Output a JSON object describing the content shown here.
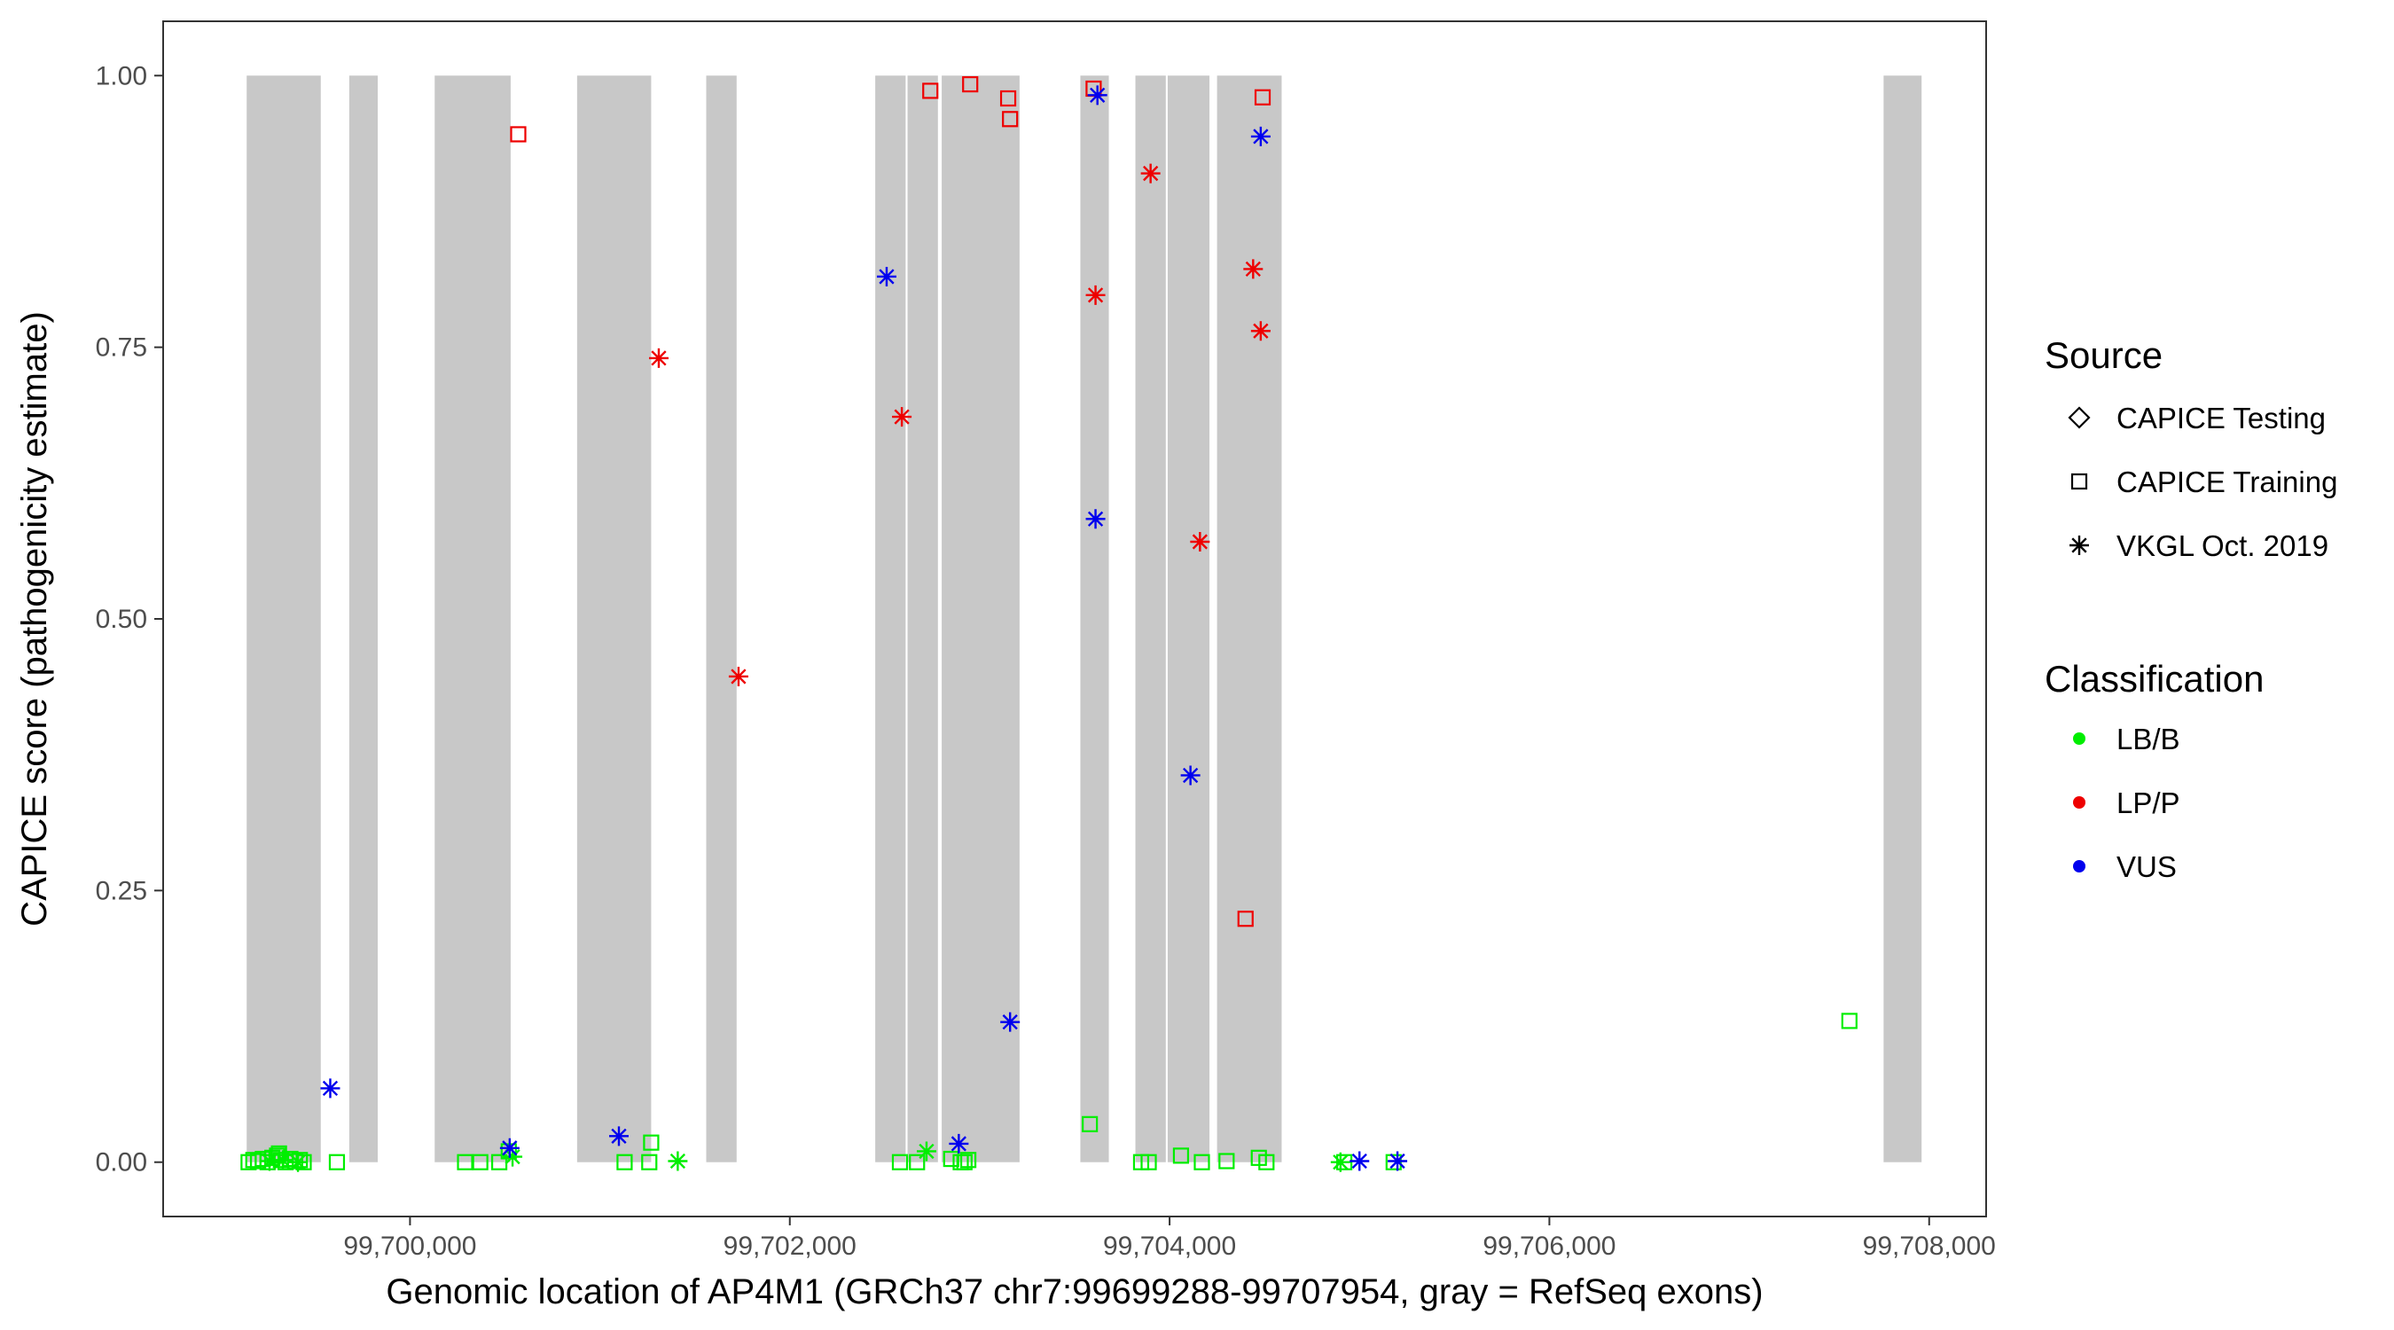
{
  "chart_data": {
    "type": "scatter",
    "xlabel": "Genomic location of AP4M1 (GRCh37 chr7:99699288-99707954, gray = RefSeq exons)",
    "ylabel": "CAPICE score (pathogenicity estimate)",
    "xlim": [
      99698700,
      99708300
    ],
    "ylim": [
      -0.05,
      1.05
    ],
    "x_ticks": [
      {
        "value": 99700000,
        "label": "99,700,000"
      },
      {
        "value": 99702000,
        "label": "99,702,000"
      },
      {
        "value": 99704000,
        "label": "99,704,000"
      },
      {
        "value": 99706000,
        "label": "99,706,000"
      },
      {
        "value": 99708000,
        "label": "99,708,000"
      }
    ],
    "y_ticks": [
      {
        "value": 0,
        "label": "0.00"
      },
      {
        "value": 0.25,
        "label": "0.25"
      },
      {
        "value": 0.5,
        "label": "0.50"
      },
      {
        "value": 0.75,
        "label": "0.75"
      },
      {
        "value": 1.0,
        "label": "1.00"
      }
    ],
    "grid": false,
    "exons": [
      [
        99699140,
        99699530
      ],
      [
        99699680,
        99699830
      ],
      [
        99700130,
        99700530
      ],
      [
        99700880,
        99701270
      ],
      [
        99701560,
        99701720
      ],
      [
        99702450,
        99702610
      ],
      [
        99702620,
        99702780
      ],
      [
        99702800,
        99703210
      ],
      [
        99703530,
        99703680
      ],
      [
        99703820,
        99703980
      ],
      [
        99703990,
        99704210
      ],
      [
        99704250,
        99704590
      ],
      [
        99707760,
        99707960
      ]
    ],
    "exon_color": "#c8c8c8",
    "colors": {
      "LB/B": "#00ee00",
      "LP/P": "#ee0000",
      "VUS": "#0000ee"
    },
    "legend": {
      "position": "right",
      "source_title": "Source",
      "source_items": [
        {
          "label": "CAPICE Testing",
          "shape": "diamond"
        },
        {
          "label": "CAPICE Training",
          "shape": "square"
        },
        {
          "label": "VKGL Oct. 2019",
          "shape": "asterisk"
        }
      ],
      "class_title": "Classification",
      "class_items": [
        {
          "label": "LB/B",
          "color": "#00ee00"
        },
        {
          "label": "LP/P",
          "color": "#ee0000"
        },
        {
          "label": "VUS",
          "color": "#0000ee"
        }
      ]
    },
    "points": [
      {
        "x": 99699150,
        "y": 0.0,
        "source": "CAPICE Training",
        "class": "LB/B"
      },
      {
        "x": 99699175,
        "y": 0.002,
        "source": "CAPICE Training",
        "class": "LB/B"
      },
      {
        "x": 99699200,
        "y": 0.001,
        "source": "CAPICE Training",
        "class": "LB/B"
      },
      {
        "x": 99699225,
        "y": 0.003,
        "source": "CAPICE Training",
        "class": "LB/B"
      },
      {
        "x": 99699250,
        "y": 0.0,
        "source": "CAPICE Training",
        "class": "LB/B"
      },
      {
        "x": 99699275,
        "y": 0.004,
        "source": "CAPICE Training",
        "class": "LB/B"
      },
      {
        "x": 99699300,
        "y": 0.006,
        "source": "CAPICE Training",
        "class": "LB/B"
      },
      {
        "x": 99699320,
        "y": 0.002,
        "source": "CAPICE Training",
        "class": "LB/B"
      },
      {
        "x": 99699345,
        "y": 0.0,
        "source": "CAPICE Training",
        "class": "LB/B"
      },
      {
        "x": 99699370,
        "y": 0.003,
        "source": "CAPICE Training",
        "class": "LB/B"
      },
      {
        "x": 99699395,
        "y": 0.001,
        "source": "CAPICE Training",
        "class": "LB/B"
      },
      {
        "x": 99699420,
        "y": 0.002,
        "source": "CAPICE Training",
        "class": "LB/B"
      },
      {
        "x": 99699440,
        "y": 0.0,
        "source": "CAPICE Training",
        "class": "LB/B"
      },
      {
        "x": 99699310,
        "y": 0.008,
        "source": "CAPICE Training",
        "class": "LB/B"
      },
      {
        "x": 99699260,
        "y": 0.001,
        "source": "VKGL Oct. 2019",
        "class": "LB/B"
      },
      {
        "x": 99699330,
        "y": 0.002,
        "source": "VKGL Oct. 2019",
        "class": "LB/B"
      },
      {
        "x": 99699410,
        "y": 0.0,
        "source": "VKGL Oct. 2019",
        "class": "LB/B"
      },
      {
        "x": 99699615,
        "y": 0.0,
        "source": "CAPICE Training",
        "class": "LB/B"
      },
      {
        "x": 99699580,
        "y": 0.068,
        "source": "VKGL Oct. 2019",
        "class": "VUS"
      },
      {
        "x": 99700290,
        "y": 0.0,
        "source": "CAPICE Training",
        "class": "LB/B"
      },
      {
        "x": 99700370,
        "y": 0.0,
        "source": "CAPICE Training",
        "class": "LB/B"
      },
      {
        "x": 99700470,
        "y": 0.0,
        "source": "CAPICE Training",
        "class": "LB/B"
      },
      {
        "x": 99700520,
        "y": 0.01,
        "source": "CAPICE Training",
        "class": "LB/B"
      },
      {
        "x": 99700540,
        "y": 0.005,
        "source": "VKGL Oct. 2019",
        "class": "LB/B"
      },
      {
        "x": 99700525,
        "y": 0.013,
        "source": "VKGL Oct. 2019",
        "class": "VUS"
      },
      {
        "x": 99700570,
        "y": 0.946,
        "source": "CAPICE Training",
        "class": "LP/P"
      },
      {
        "x": 99701100,
        "y": 0.024,
        "source": "VKGL Oct. 2019",
        "class": "VUS"
      },
      {
        "x": 99701310,
        "y": 0.74,
        "source": "VKGL Oct. 2019",
        "class": "LP/P"
      },
      {
        "x": 99701130,
        "y": 0.0,
        "source": "CAPICE Training",
        "class": "LB/B"
      },
      {
        "x": 99701260,
        "y": 0.0,
        "source": "CAPICE Training",
        "class": "LB/B"
      },
      {
        "x": 99701270,
        "y": 0.018,
        "source": "CAPICE Training",
        "class": "LB/B"
      },
      {
        "x": 99701410,
        "y": 0.001,
        "source": "VKGL Oct. 2019",
        "class": "LB/B"
      },
      {
        "x": 99701730,
        "y": 0.447,
        "source": "VKGL Oct. 2019",
        "class": "LP/P"
      },
      {
        "x": 99702510,
        "y": 0.815,
        "source": "VKGL Oct. 2019",
        "class": "VUS"
      },
      {
        "x": 99702590,
        "y": 0.686,
        "source": "VKGL Oct. 2019",
        "class": "LP/P"
      },
      {
        "x": 99702740,
        "y": 0.986,
        "source": "CAPICE Training",
        "class": "LP/P"
      },
      {
        "x": 99702580,
        "y": 0.0,
        "source": "CAPICE Training",
        "class": "LB/B"
      },
      {
        "x": 99702670,
        "y": 0.0,
        "source": "CAPICE Training",
        "class": "LB/B"
      },
      {
        "x": 99702720,
        "y": 0.01,
        "source": "VKGL Oct. 2019",
        "class": "LB/B"
      },
      {
        "x": 99702850,
        "y": 0.003,
        "source": "CAPICE Training",
        "class": "LB/B"
      },
      {
        "x": 99702890,
        "y": 0.017,
        "source": "VKGL Oct. 2019",
        "class": "VUS"
      },
      {
        "x": 99702900,
        "y": 0.0,
        "source": "CAPICE Training",
        "class": "LB/B"
      },
      {
        "x": 99702920,
        "y": 0.0,
        "source": "CAPICE Training",
        "class": "LB/B"
      },
      {
        "x": 99702940,
        "y": 0.002,
        "source": "CAPICE Training",
        "class": "LB/B"
      },
      {
        "x": 99702950,
        "y": 0.992,
        "source": "CAPICE Training",
        "class": "LP/P"
      },
      {
        "x": 99703150,
        "y": 0.979,
        "source": "CAPICE Training",
        "class": "LP/P"
      },
      {
        "x": 99703160,
        "y": 0.96,
        "source": "CAPICE Training",
        "class": "LP/P"
      },
      {
        "x": 99703160,
        "y": 0.129,
        "source": "VKGL Oct. 2019",
        "class": "VUS"
      },
      {
        "x": 99703580,
        "y": 0.035,
        "source": "CAPICE Training",
        "class": "LB/B"
      },
      {
        "x": 99703600,
        "y": 0.988,
        "source": "CAPICE Training",
        "class": "LP/P"
      },
      {
        "x": 99703620,
        "y": 0.982,
        "source": "VKGL Oct. 2019",
        "class": "VUS"
      },
      {
        "x": 99703610,
        "y": 0.798,
        "source": "VKGL Oct. 2019",
        "class": "LP/P"
      },
      {
        "x": 99703610,
        "y": 0.592,
        "source": "VKGL Oct. 2019",
        "class": "VUS"
      },
      {
        "x": 99703850,
        "y": 0.0,
        "source": "CAPICE Training",
        "class": "LB/B"
      },
      {
        "x": 99703890,
        "y": 0.0,
        "source": "CAPICE Training",
        "class": "LB/B"
      },
      {
        "x": 99703900,
        "y": 0.91,
        "source": "VKGL Oct. 2019",
        "class": "LP/P"
      },
      {
        "x": 99704060,
        "y": 0.006,
        "source": "CAPICE Training",
        "class": "LB/B"
      },
      {
        "x": 99704110,
        "y": 0.356,
        "source": "VKGL Oct. 2019",
        "class": "VUS"
      },
      {
        "x": 99704160,
        "y": 0.571,
        "source": "VKGL Oct. 2019",
        "class": "LP/P"
      },
      {
        "x": 99704170,
        "y": 0.0,
        "source": "CAPICE Training",
        "class": "LB/B"
      },
      {
        "x": 99704300,
        "y": 0.001,
        "source": "CAPICE Training",
        "class": "LB/B"
      },
      {
        "x": 99704400,
        "y": 0.224,
        "source": "CAPICE Training",
        "class": "LP/P"
      },
      {
        "x": 99704440,
        "y": 0.822,
        "source": "VKGL Oct. 2019",
        "class": "LP/P"
      },
      {
        "x": 99704470,
        "y": 0.004,
        "source": "CAPICE Training",
        "class": "LB/B"
      },
      {
        "x": 99704480,
        "y": 0.765,
        "source": "VKGL Oct. 2019",
        "class": "LP/P"
      },
      {
        "x": 99704480,
        "y": 0.944,
        "source": "VKGL Oct. 2019",
        "class": "VUS"
      },
      {
        "x": 99704490,
        "y": 0.98,
        "source": "CAPICE Training",
        "class": "LP/P"
      },
      {
        "x": 99704510,
        "y": 0.0,
        "source": "CAPICE Training",
        "class": "LB/B"
      },
      {
        "x": 99704900,
        "y": 0.0,
        "source": "VKGL Oct. 2019",
        "class": "LB/B"
      },
      {
        "x": 99704920,
        "y": 0.0,
        "source": "CAPICE Training",
        "class": "LB/B"
      },
      {
        "x": 99705000,
        "y": 0.001,
        "source": "VKGL Oct. 2019",
        "class": "VUS"
      },
      {
        "x": 99705180,
        "y": 0.0,
        "source": "CAPICE Training",
        "class": "LB/B"
      },
      {
        "x": 99705200,
        "y": 0.001,
        "source": "VKGL Oct. 2019",
        "class": "VUS"
      },
      {
        "x": 99707580,
        "y": 0.13,
        "source": "CAPICE Training",
        "class": "LB/B"
      }
    ]
  }
}
